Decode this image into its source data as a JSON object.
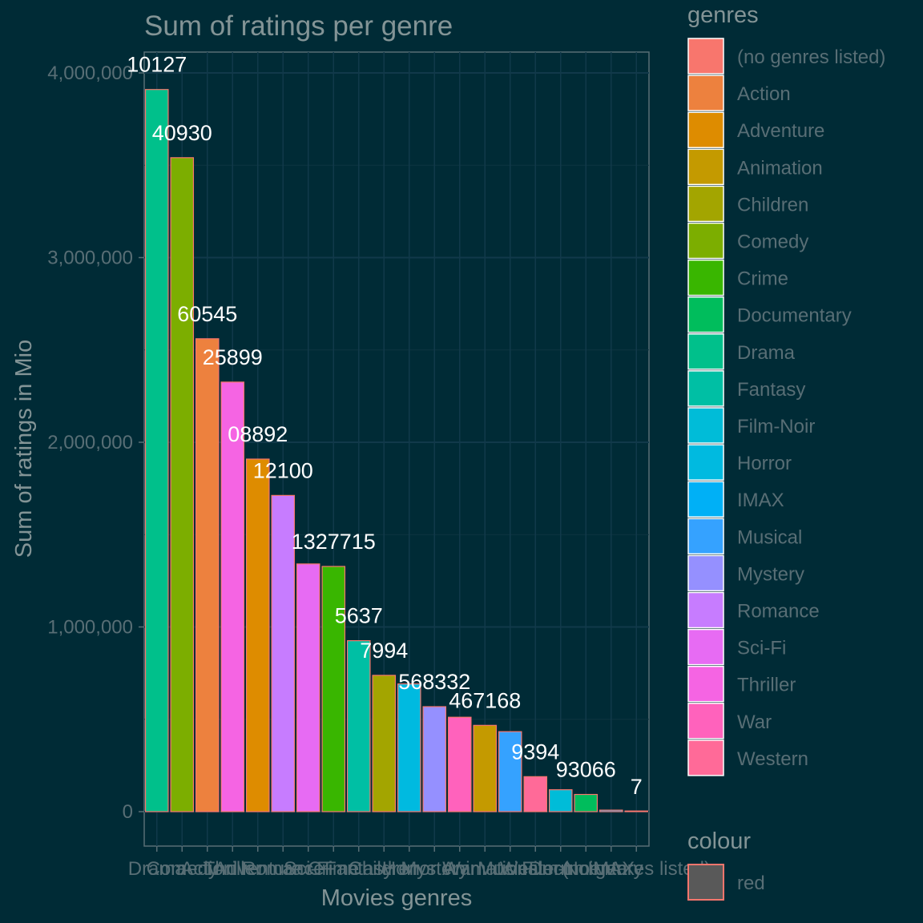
{
  "chart_data": {
    "type": "bar",
    "title": "Sum of ratings per genre",
    "xlabel": "Movies genres",
    "ylabel": "Sum of ratings in Mio",
    "ylim": [
      -150000,
      4200000
    ],
    "yticks": [
      0,
      1000000,
      2000000,
      3000000,
      4000000
    ],
    "ytick_labels": [
      "0",
      "1,000,000",
      "2,000,000",
      "3,000,000",
      "4,000,000"
    ],
    "grid": true,
    "bar_outline_color": "#f8766d",
    "categories": [
      "Drama",
      "Comedy",
      "Action",
      "Thriller",
      "Adventure",
      "Romance",
      "Sci-Fi",
      "Crime",
      "Fantasy",
      "Children",
      "Horror",
      "Mystery",
      "War",
      "Animation",
      "Musical",
      "Western",
      "Film-Noir",
      "Documentary",
      "IMAX",
      "(no genres listed)"
    ],
    "values": [
      3910127,
      3540930,
      2560545,
      2325899,
      1908892,
      1712100,
      1341183,
      1327715,
      925637,
      737994,
      691485,
      568332,
      511147,
      467168,
      433080,
      189394,
      118541,
      93066,
      8181,
      7
    ],
    "labels": [
      "10127",
      "40930",
      "60545",
      "25899",
      "08892",
      "12100",
      "",
      "1327715",
      "5637",
      "7994",
      "",
      "568332",
      "",
      "467168",
      "",
      "9394",
      "",
      "93066",
      "",
      "7"
    ],
    "colors": [
      "#00c08b",
      "#7cae00",
      "#ed813e",
      "#f564e3",
      "#de8c00",
      "#c77cff",
      "#e76bf3",
      "#39b600",
      "#00bfa4",
      "#a3a500",
      "#00bae0",
      "#9590ff",
      "#ff62bc",
      "#c49a00",
      "#35a2ff",
      "#ff6a98",
      "#00bcd8",
      "#00bd5c",
      "#00b0f6",
      "#f8766d"
    ],
    "legend_placement": "right"
  },
  "legend": {
    "genres_title": "genres",
    "genres": [
      {
        "label": "(no genres listed)",
        "color": "#f8766d"
      },
      {
        "label": "Action",
        "color": "#ed813e"
      },
      {
        "label": "Adventure",
        "color": "#de8c00"
      },
      {
        "label": "Animation",
        "color": "#c49a00"
      },
      {
        "label": "Children",
        "color": "#a3a500"
      },
      {
        "label": "Comedy",
        "color": "#7cae00"
      },
      {
        "label": "Crime",
        "color": "#39b600"
      },
      {
        "label": "Documentary",
        "color": "#00bd5c"
      },
      {
        "label": "Drama",
        "color": "#00c08b"
      },
      {
        "label": "Fantasy",
        "color": "#00bfa4"
      },
      {
        "label": "Film-Noir",
        "color": "#00bcd8"
      },
      {
        "label": "Horror",
        "color": "#00bae0"
      },
      {
        "label": "IMAX",
        "color": "#00b0f6"
      },
      {
        "label": "Musical",
        "color": "#35a2ff"
      },
      {
        "label": "Mystery",
        "color": "#9590ff"
      },
      {
        "label": "Romance",
        "color": "#c77cff"
      },
      {
        "label": "Sci-Fi",
        "color": "#e76bf3"
      },
      {
        "label": "Thriller",
        "color": "#f564e3"
      },
      {
        "label": "War",
        "color": "#ff62bc"
      },
      {
        "label": "Western",
        "color": "#ff6a98"
      }
    ],
    "colour_title": "colour",
    "colour_items": [
      {
        "label": "red",
        "color": "#595959",
        "outline": "#f8766d"
      }
    ]
  }
}
